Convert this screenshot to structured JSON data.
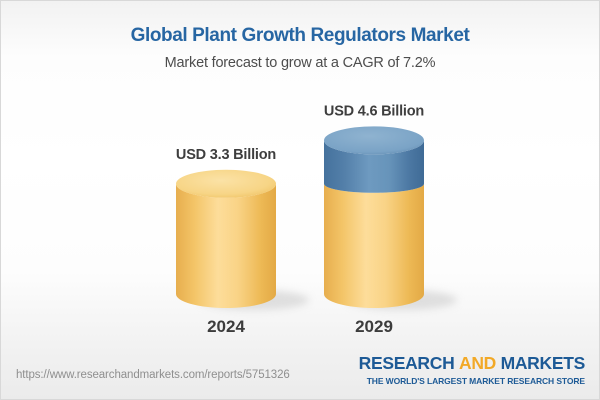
{
  "header": {
    "title": "Global Plant Growth Regulators Market",
    "subtitle": "Market forecast to grow at a CAGR of 7.2%"
  },
  "chart_data": {
    "type": "bar",
    "subtype": "3d-cylinder-stacked",
    "title": "Global Plant Growth Regulators Market",
    "subtitle": "Market forecast to grow at a CAGR of 7.2%",
    "unit": "USD Billion",
    "cagr_percent": 7.2,
    "categories": [
      "2024",
      "2029"
    ],
    "bars": [
      {
        "category": "2024",
        "value": 3.3,
        "value_label": "USD 3.3 Billion",
        "segments": [
          {
            "name": "base-market",
            "value": 3.3,
            "theme": "gold"
          }
        ]
      },
      {
        "category": "2029",
        "value": 4.6,
        "value_label": "USD 4.6 Billion",
        "segments": [
          {
            "name": "base-market",
            "value": 3.3,
            "theme": "gold"
          },
          {
            "name": "forecast-growth",
            "value": 1.3,
            "theme": "blue"
          }
        ]
      }
    ],
    "colors": {
      "gold": "#f5c766",
      "blue": "#5b88b0"
    },
    "legend": "none",
    "grid": "off"
  },
  "footer": {
    "url": "https://www.researchandmarkets.com/reports/5751326",
    "logo": {
      "research": "RESEARCH",
      "and": "AND",
      "markets": "MARKETS",
      "tagline": "THE WORLD'S LARGEST MARKET RESEARCH STORE"
    },
    "colors": {
      "logo_blue": "#1d5a96",
      "logo_gold": "#f2a927"
    }
  }
}
